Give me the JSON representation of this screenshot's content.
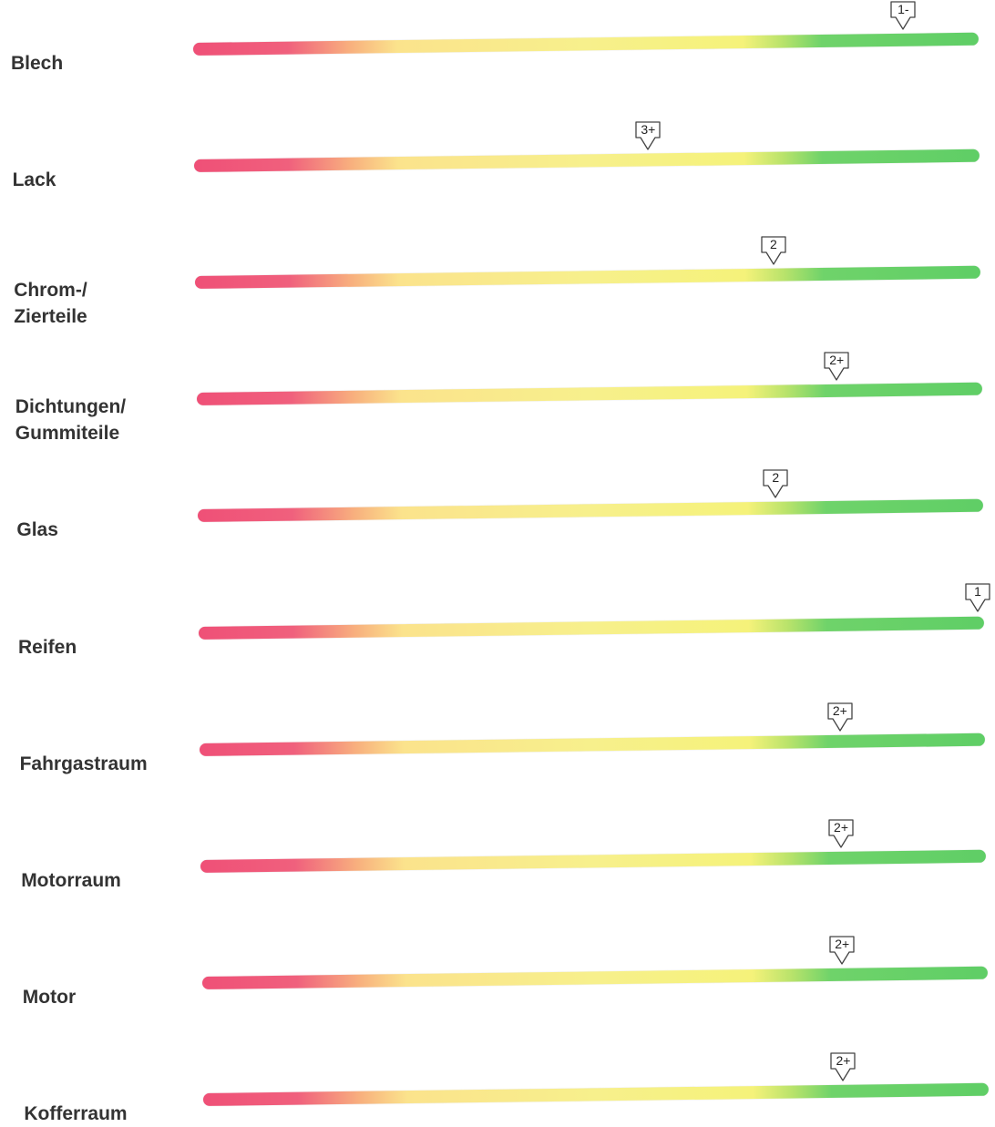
{
  "ratings": [
    {
      "label": "Blech",
      "grade": "1-",
      "level": 0.91
    },
    {
      "label": "Lack",
      "grade": "3+",
      "level": 0.58
    },
    {
      "label": "Chrom-/\nZierteile",
      "grade": "2",
      "level": 0.74
    },
    {
      "label": "Dichtungen/\nGummiteile",
      "grade": "2+",
      "level": 0.82
    },
    {
      "label": "Glas",
      "grade": "2",
      "level": 0.74
    },
    {
      "label": "Reifen",
      "grade": "1",
      "level": 1.0
    },
    {
      "label": "Fahrgastraum",
      "grade": "2+",
      "level": 0.82
    },
    {
      "label": "Motorraum",
      "grade": "2+",
      "level": 0.82
    },
    {
      "label": "Motor",
      "grade": "2+",
      "level": 0.82
    },
    {
      "label": "Kofferraum",
      "grade": "2+",
      "level": 0.82
    }
  ],
  "colors": {
    "bad": "#ef5077",
    "medium": "#f7f08c",
    "good": "#5fce66"
  }
}
